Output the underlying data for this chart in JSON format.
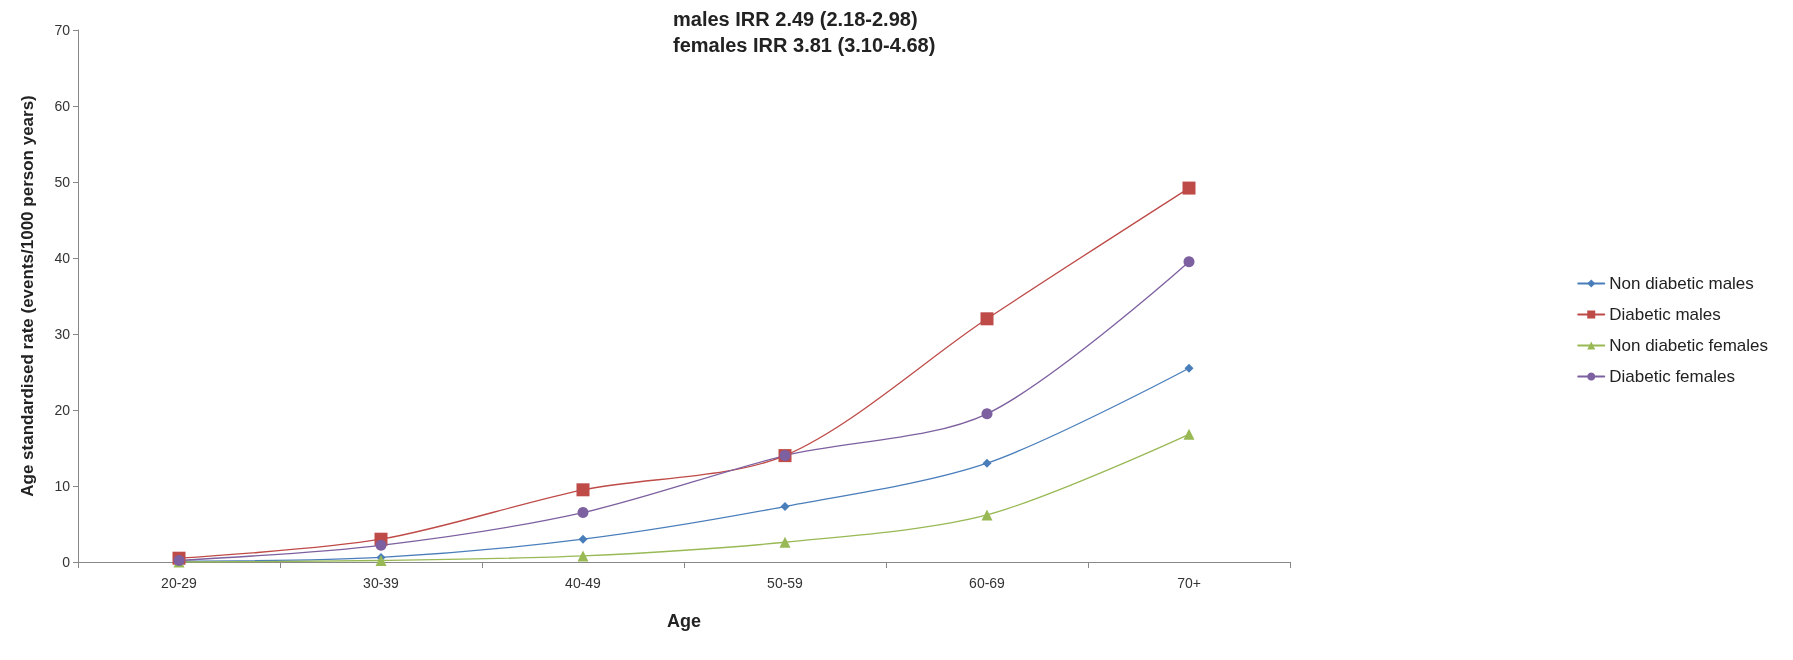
{
  "chart_data": {
    "type": "line",
    "title": "males IRR 2.49 (2.18-2.98)",
    "subtitle": "females IRR 3.81 (3.10-4.68)",
    "xlabel": "Age",
    "ylabel": "Age standardised rate (events/1000 person years)",
    "categories": [
      "20-29",
      "30-39",
      "40-49",
      "50-59",
      "60-69",
      "70+"
    ],
    "series": [
      {
        "name": "Non diabetic males",
        "color": "#4a7ebb",
        "marker": "diamond",
        "values": [
          0.1,
          0.6,
          3,
          7.3,
          13,
          25.5
        ]
      },
      {
        "name": "Diabetic males",
        "color": "#be4b48",
        "marker": "square",
        "values": [
          0.5,
          3,
          9.5,
          14,
          32,
          49.2
        ]
      },
      {
        "name": "Non diabetic females",
        "color": "#98b954",
        "marker": "triangle",
        "values": [
          0,
          0.2,
          0.8,
          2.6,
          6.2,
          16.8
        ]
      },
      {
        "name": "Diabetic females",
        "color": "#7d60a0",
        "marker": "circle",
        "values": [
          0.2,
          2.2,
          6.5,
          14,
          19.5,
          39.5
        ]
      }
    ],
    "ylim": [
      0,
      70
    ],
    "yticks": [
      0,
      10,
      20,
      30,
      40,
      50,
      60,
      70
    ],
    "grid": false,
    "legend": "right",
    "line_style": "solid"
  }
}
